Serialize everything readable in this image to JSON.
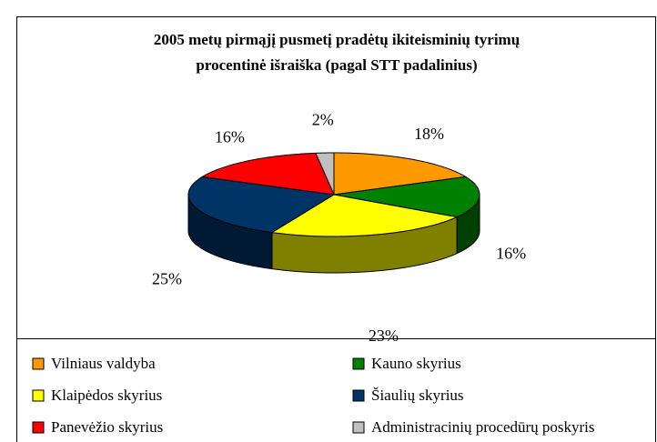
{
  "chart_data": {
    "type": "pie",
    "title": [
      "2005 metų pirmąjį pusmetį pradėtų ikiteisminių tyrimų",
      "procentinė išraiška (pagal STT padalinius)"
    ],
    "categories": [
      "Vilniaus valdyba",
      "Kauno skyrius",
      "Klaipėdos skyrius",
      "Šiaulių skyrius",
      "Panevėžio skyrius",
      "Administracinių procedūrų poskyris"
    ],
    "values": [
      18,
      16,
      23,
      25,
      16,
      2
    ],
    "value_labels": [
      "18%",
      "16%",
      "23%",
      "25%",
      "16%",
      "2%"
    ],
    "colors": [
      "#ff9900",
      "#008000",
      "#ffff00",
      "#003366",
      "#ff0000",
      "#c0c0c0"
    ],
    "legend": "bottom"
  }
}
